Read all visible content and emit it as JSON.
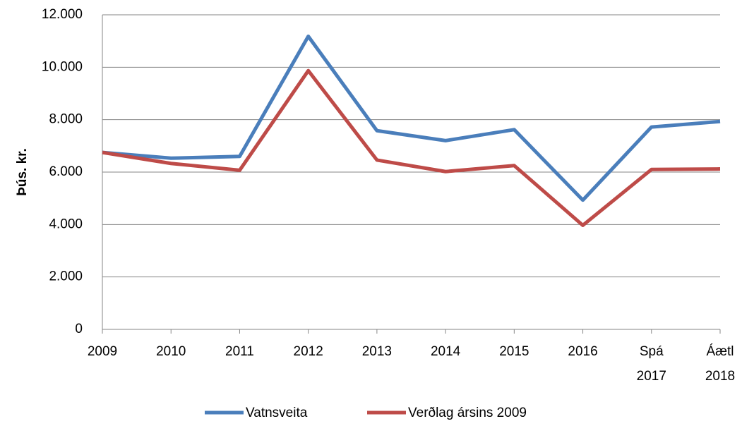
{
  "chart_data": {
    "type": "line",
    "y_label": "Þús. kr.",
    "categories": [
      "2009",
      "2010",
      "2011",
      "2012",
      "2013",
      "2014",
      "2015",
      "2016",
      "Spá 2017",
      "Áætl 2018"
    ],
    "series": [
      {
        "name": "Vatnsveita",
        "color": "#4a7ebb",
        "values": [
          6750,
          6530,
          6600,
          11180,
          7580,
          7200,
          7620,
          4930,
          7720,
          7930
        ]
      },
      {
        "name": "Verðlag ársins 2009",
        "color": "#be4b48",
        "values": [
          6750,
          6330,
          6070,
          9870,
          6460,
          6020,
          6250,
          3970,
          6100,
          6120
        ]
      }
    ],
    "ylim": [
      0,
      12000
    ],
    "yticks": [
      0,
      {
        "value": 2000,
        "label": "2.000"
      },
      {
        "value": 4000,
        "label": "4.000"
      },
      {
        "value": 6000,
        "label": "6.000"
      },
      {
        "value": 8000,
        "label": "8.000"
      },
      {
        "value": 10000,
        "label": "10.000"
      },
      {
        "value": 12000,
        "label": "12.000"
      }
    ],
    "grid": true,
    "legend": "bottom"
  }
}
